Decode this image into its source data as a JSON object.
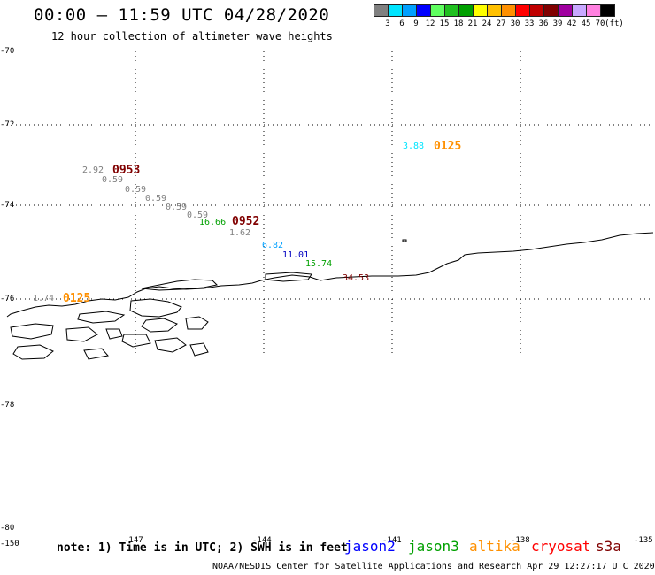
{
  "header": {
    "title": "00:00 – 11:59 UTC 04/28/2020",
    "subtitle": "12 hour collection of altimeter wave heights"
  },
  "legend": {
    "colors": [
      "#808080",
      "#00e5ff",
      "#00a0ff",
      "#0000ff",
      "#60ff60",
      "#20c020",
      "#00a000",
      "#ffff00",
      "#ffc000",
      "#ff9000",
      "#ff0000",
      "#c00000",
      "#800000",
      "#a000a0",
      "#c8a8ff",
      "#ff80e0",
      "#000000"
    ],
    "labels": [
      "3",
      "6",
      "9",
      "12",
      "15",
      "18",
      "21",
      "24",
      "27",
      "30",
      "33",
      "36",
      "39",
      "42",
      "45",
      "70",
      "(ft)"
    ]
  },
  "axes": {
    "y_labels": [
      {
        "text": "-70"
      },
      {
        "text": "-72"
      },
      {
        "text": "-74"
      },
      {
        "text": "-76"
      },
      {
        "text": "-78"
      },
      {
        "text": "-78"
      },
      {
        "text": "-80"
      }
    ],
    "x_labels": [
      {
        "text": "-150"
      },
      {
        "text": "-147"
      },
      {
        "text": "-144"
      },
      {
        "text": "-141"
      },
      {
        "text": "-138"
      },
      {
        "text": "-135"
      }
    ]
  },
  "time_labels": [
    {
      "text": "0953",
      "color": "#800000"
    },
    {
      "text": "0952",
      "color": "#800000"
    },
    {
      "text": "0125",
      "color": "#ff9000"
    },
    {
      "text": "0125",
      "color": "#ff9000"
    }
  ],
  "wave_values": [
    {
      "text": "2.92",
      "color": "#808080"
    },
    {
      "text": "0.59",
      "color": "#808080"
    },
    {
      "text": "0.59",
      "color": "#808080"
    },
    {
      "text": "0.59",
      "color": "#808080"
    },
    {
      "text": "0.59",
      "color": "#808080"
    },
    {
      "text": "0.59",
      "color": "#808080"
    },
    {
      "text": "16.66",
      "color": "#00a000"
    },
    {
      "text": "1.62",
      "color": "#808080"
    },
    {
      "text": "6.82",
      "color": "#00a0ff"
    },
    {
      "text": "11.01",
      "color": "#0000c0"
    },
    {
      "text": "15.74",
      "color": "#00a000"
    },
    {
      "text": "34.53",
      "color": "#800000"
    },
    {
      "text": "3.88",
      "color": "#00e5ff"
    },
    {
      "text": "1.74",
      "color": "#808080"
    }
  ],
  "footer": {
    "note": "note: 1) Time is in UTC; 2) SWH is in feet",
    "satellites": [
      {
        "name": "jason2",
        "color": "#0000ff"
      },
      {
        "name": "jason3",
        "color": "#00a000"
      },
      {
        "name": "altika",
        "color": "#ff9000"
      },
      {
        "name": "cryosat",
        "color": "#ff0000"
      },
      {
        "name": "s3a",
        "color": "#800000"
      }
    ],
    "credit": "NOAA/NESDIS Center for Satellite Applications and Research   Apr 29 12:27:17 UTC 2020"
  }
}
